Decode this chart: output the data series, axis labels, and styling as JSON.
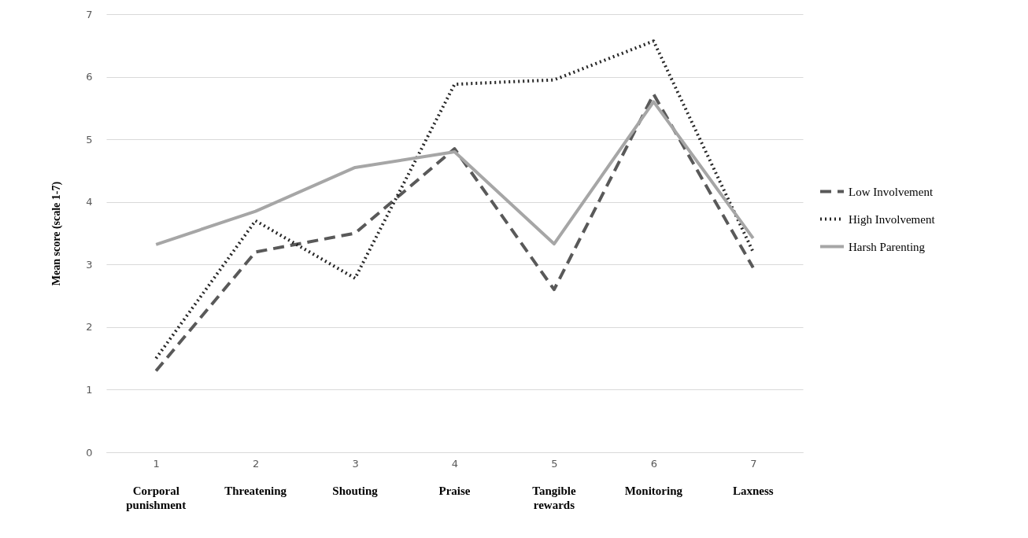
{
  "chart_data": {
    "type": "line",
    "categories": [
      "1",
      "2",
      "3",
      "4",
      "5",
      "6",
      "7"
    ],
    "ylabel": "Mean score (scale 1-7)",
    "ylim": [
      0,
      7
    ],
    "yticks": [
      0,
      1,
      2,
      3,
      4,
      5,
      6,
      7
    ],
    "grid": "y",
    "legend": "right",
    "annotations": [
      "Corporal punishment",
      "Threatening",
      "Shouting",
      "Praise",
      "Tangible rewards",
      "Monitoring",
      "Laxness"
    ],
    "series": [
      {
        "name": "Low Involvement",
        "color": "#595959",
        "line_style": "dashed",
        "values": [
          1.3,
          3.2,
          3.5,
          4.85,
          2.6,
          5.72,
          2.95
        ]
      },
      {
        "name": "High Involvement",
        "color": "#262626",
        "line_style": "dotted",
        "values": [
          1.5,
          3.7,
          2.78,
          5.88,
          5.95,
          6.57,
          3.2
        ]
      },
      {
        "name": "Harsh Parenting",
        "color": "#a6a6a6",
        "line_style": "solid",
        "values": [
          3.32,
          3.85,
          4.55,
          4.8,
          3.33,
          5.6,
          3.42
        ]
      }
    ]
  }
}
